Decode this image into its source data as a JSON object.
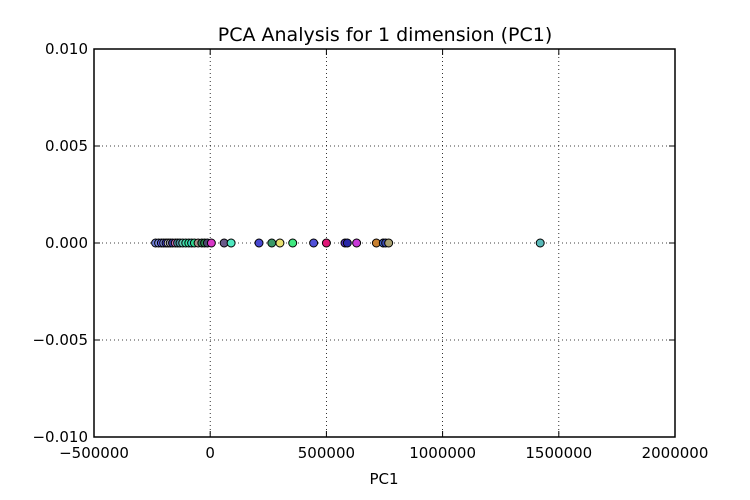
{
  "chart_data": {
    "type": "scatter",
    "title": "PCA Analysis for 1 dimension (PC1)",
    "xlabel": "PC1",
    "ylabel": "",
    "xlim": [
      -500000,
      2000000
    ],
    "ylim": [
      -0.01,
      0.01
    ],
    "xticks": [
      -500000,
      0,
      500000,
      1000000,
      1500000,
      2000000
    ],
    "xtick_labels": [
      "−500000",
      "0",
      "500000",
      "1000000",
      "1500000",
      "2000000"
    ],
    "yticks": [
      -0.01,
      -0.005,
      0.0,
      0.005,
      0.01
    ],
    "ytick_labels": [
      "−0.010",
      "−0.005",
      "0.000",
      "0.005",
      "0.010"
    ],
    "grid": true,
    "grid_style": "dotted",
    "legend": "none",
    "points": [
      {
        "x": -235000,
        "y": 0,
        "color": "#6f7fd8"
      },
      {
        "x": -222000,
        "y": 0,
        "color": "#7a8ae0"
      },
      {
        "x": -210000,
        "y": 0,
        "color": "#5b5be0"
      },
      {
        "x": -200000,
        "y": 0,
        "color": "#8899e8"
      },
      {
        "x": -190000,
        "y": 0,
        "color": "#4040c8"
      },
      {
        "x": -181000,
        "y": 0,
        "color": "#d0d0d0"
      },
      {
        "x": -172000,
        "y": 0,
        "color": "#9a9aa6"
      },
      {
        "x": -162000,
        "y": 0,
        "color": "#3a3aa0"
      },
      {
        "x": -150000,
        "y": 0,
        "color": "#d070b8"
      },
      {
        "x": -140000,
        "y": 0,
        "color": "#56a0b0"
      },
      {
        "x": -130000,
        "y": 0,
        "color": "#4d90a0"
      },
      {
        "x": -118000,
        "y": 0,
        "color": "#66d0b8"
      },
      {
        "x": -105000,
        "y": 0,
        "color": "#40e0b0"
      },
      {
        "x": -92000,
        "y": 0,
        "color": "#38e8a0"
      },
      {
        "x": -80000,
        "y": 0,
        "color": "#3ad0c0"
      },
      {
        "x": -68000,
        "y": 0,
        "color": "#2fd890"
      },
      {
        "x": -52000,
        "y": 0,
        "color": "#a89088"
      },
      {
        "x": -36000,
        "y": 0,
        "color": "#3a7a60"
      },
      {
        "x": -24000,
        "y": 0,
        "color": "#2a8a50"
      },
      {
        "x": -12000,
        "y": 0,
        "color": "#4a4a70"
      },
      {
        "x": 5000,
        "y": 0,
        "color": "#d838c8"
      },
      {
        "x": 60000,
        "y": 0,
        "color": "#6a5a8a"
      },
      {
        "x": 90000,
        "y": 0,
        "color": "#50e8c0"
      },
      {
        "x": 210000,
        "y": 0,
        "color": "#4848d0"
      },
      {
        "x": 265000,
        "y": 0,
        "color": "#3a9a68"
      },
      {
        "x": 300000,
        "y": 0,
        "color": "#e8e070"
      },
      {
        "x": 355000,
        "y": 0,
        "color": "#40e880"
      },
      {
        "x": 445000,
        "y": 0,
        "color": "#5050d8"
      },
      {
        "x": 500000,
        "y": 0,
        "color": "#e01878"
      },
      {
        "x": 580000,
        "y": 0,
        "color": "#5a38c8"
      },
      {
        "x": 590000,
        "y": 0,
        "color": "#2828a8"
      },
      {
        "x": 630000,
        "y": 0,
        "color": "#c838d8"
      },
      {
        "x": 715000,
        "y": 0,
        "color": "#c88030"
      },
      {
        "x": 745000,
        "y": 0,
        "color": "#4868c8"
      },
      {
        "x": 755000,
        "y": 0,
        "color": "#3a4ab0"
      },
      {
        "x": 768000,
        "y": 0,
        "color": "#a8a070"
      },
      {
        "x": 1420000,
        "y": 0,
        "color": "#58b8b8"
      }
    ]
  }
}
